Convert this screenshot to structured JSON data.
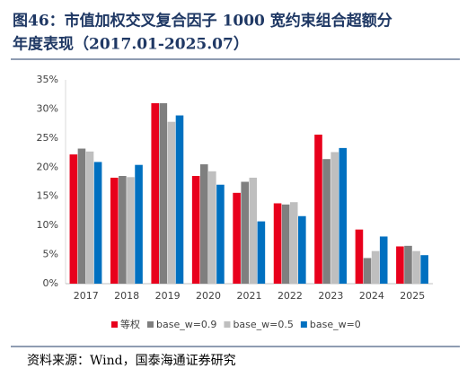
{
  "title_line1": "图46：市值加权交叉复合因子 1000 宽约束组合超额分",
  "title_line2": "年度表现（2017.01-2025.07）",
  "source": "资料来源：Wind，国泰海通证券研究",
  "chart_data": {
    "type": "bar",
    "categories": [
      "2017",
      "2018",
      "2019",
      "2020",
      "2021",
      "2022",
      "2023",
      "2024",
      "2025"
    ],
    "series": [
      {
        "name": "等权",
        "color": "#e8001c",
        "values": [
          22.2,
          18.2,
          31.0,
          18.5,
          15.6,
          13.8,
          25.6,
          9.3,
          6.4
        ]
      },
      {
        "name": "base_w=0.9",
        "color": "#7f7f7f",
        "values": [
          23.2,
          18.5,
          31.0,
          20.5,
          17.5,
          13.6,
          21.4,
          4.4,
          6.5
        ]
      },
      {
        "name": "base_w=0.5",
        "color": "#bfbfbf",
        "values": [
          22.7,
          18.3,
          27.8,
          19.3,
          18.2,
          14.0,
          22.6,
          5.6,
          5.6
        ]
      },
      {
        "name": "base_w=0",
        "color": "#0070c0",
        "values": [
          20.9,
          20.4,
          28.9,
          17.0,
          10.7,
          11.6,
          23.3,
          8.1,
          4.9
        ]
      }
    ],
    "ylim": [
      0,
      35
    ],
    "yticks": [
      {
        "value": 0,
        "label": "0%"
      },
      {
        "value": 5,
        "label": "5%"
      },
      {
        "value": 10,
        "label": "10%"
      },
      {
        "value": 15,
        "label": "15%"
      },
      {
        "value": 20,
        "label": "20%"
      },
      {
        "value": 25,
        "label": "25%"
      },
      {
        "value": 30,
        "label": "30%"
      },
      {
        "value": 35,
        "label": "35%"
      }
    ],
    "grid": false,
    "legend": "bottom"
  }
}
